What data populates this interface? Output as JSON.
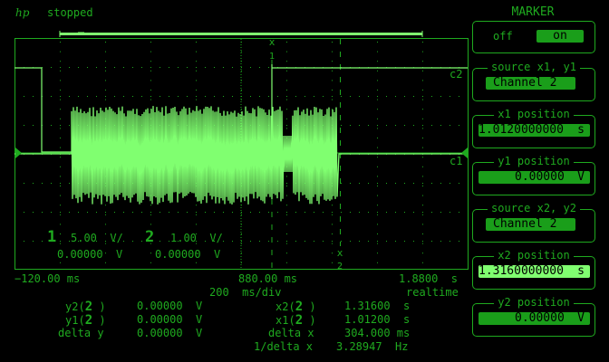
{
  "header": {
    "logo": "hp",
    "status": "stopped"
  },
  "colors": {
    "text": "#1faa1f",
    "trace": "#80ff70",
    "field": "#1a9e1a",
    "field_selected": "#80ff70"
  },
  "screen": {
    "channel_labels": {
      "c1": "c1",
      "c2": "c2"
    },
    "marker_labels": {
      "x1": "x",
      "x1_num": "1",
      "x2": "x",
      "x2_num": "2"
    },
    "ch1": {
      "num": "1",
      "scale": "5.00  V/",
      "offset": "0.00000  V"
    },
    "ch2": {
      "num": "2",
      "scale": "1.00  V/",
      "offset": "0.00000  V"
    }
  },
  "timebase": {
    "left": "−120.00 ms",
    "center": "880.00 ms",
    "right": "1.8800  s",
    "per_div": "200  ms/div",
    "mode": "realtime"
  },
  "measurements": {
    "y2_label": "y2(",
    "y2_ch": "2",
    "y2_value": "0.00000  V",
    "y1_label": "y1(",
    "y1_ch": "2",
    "y1_value": "0.00000  V",
    "dy_label": "delta y",
    "dy_value": "0.00000  V",
    "x2_label": "x2(",
    "x2_ch": "2",
    "x2_value": "1.31600  s",
    "x1_label": "x1(",
    "x1_ch": "2",
    "x1_value": "1.01200  s",
    "dx_label": "delta x",
    "dx_value": "304.000 ms",
    "inv_dx_label": "1/delta x",
    "inv_dx_value": "3.28947  Hz",
    "close": ")"
  },
  "marker_panel": {
    "title": "MARKER",
    "off": "off",
    "on": "on",
    "state": "on",
    "source_x1y1_label": "source x1, y1",
    "source_x1y1": "Channel 2",
    "x1_position_label": "x1 position",
    "x1_position": "1.0120000000",
    "x1_unit": "s",
    "y1_position_label": "y1 position",
    "y1_position": "0.00000",
    "y1_unit": "V",
    "source_x2y2_label": "source x2, y2",
    "source_x2y2": "Channel 2",
    "x2_position_label": "x2 position",
    "x2_position": "1.3160000000",
    "x2_unit": "s",
    "y2_position_label": "y2 position",
    "y2_position": "0.00000",
    "y2_unit": "V"
  }
}
